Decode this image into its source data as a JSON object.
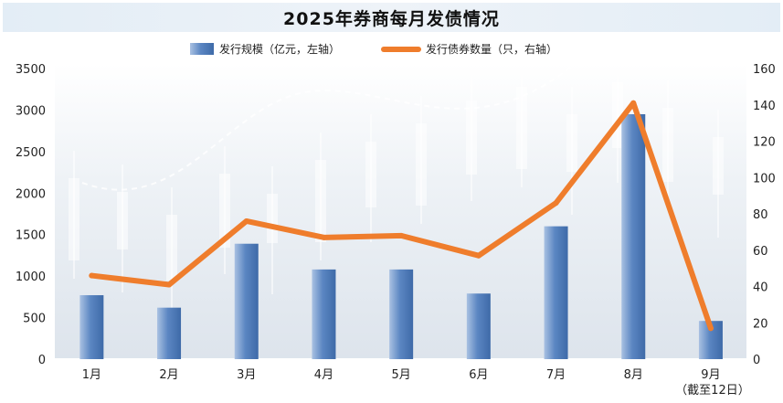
{
  "chart_data": {
    "type": "bar",
    "title": "2025年券商每月发债情况",
    "categories": [
      "1月",
      "2月",
      "3月",
      "4月",
      "5月",
      "6月",
      "7月",
      "8月",
      "9月"
    ],
    "category_notes": [
      "",
      "",
      "",
      "",
      "",
      "",
      "",
      "",
      "（截至12日）"
    ],
    "series": [
      {
        "name": "发行规模（亿元，左轴）",
        "type": "bar",
        "axis": "left",
        "values": [
          770,
          620,
          1390,
          1080,
          1080,
          790,
          1600,
          2950,
          460
        ]
      },
      {
        "name": "发行债券数量（只，右轴）",
        "type": "line",
        "axis": "right",
        "values": [
          46,
          41,
          76,
          67,
          68,
          57,
          86,
          141,
          17
        ]
      }
    ],
    "left_axis": {
      "ylim": [
        0,
        3500
      ],
      "ticks": [
        "0",
        "500",
        "1000",
        "1500",
        "2000",
        "2500",
        "3000",
        "3500"
      ]
    },
    "right_axis": {
      "ylim": [
        0,
        160
      ],
      "ticks": [
        "0",
        "20",
        "40",
        "60",
        "80",
        "100",
        "120",
        "140",
        "160"
      ]
    },
    "legend_position": "top-center",
    "grid": false,
    "colors": {
      "bar": "#5b86c2",
      "line": "#ef7d2c"
    }
  }
}
